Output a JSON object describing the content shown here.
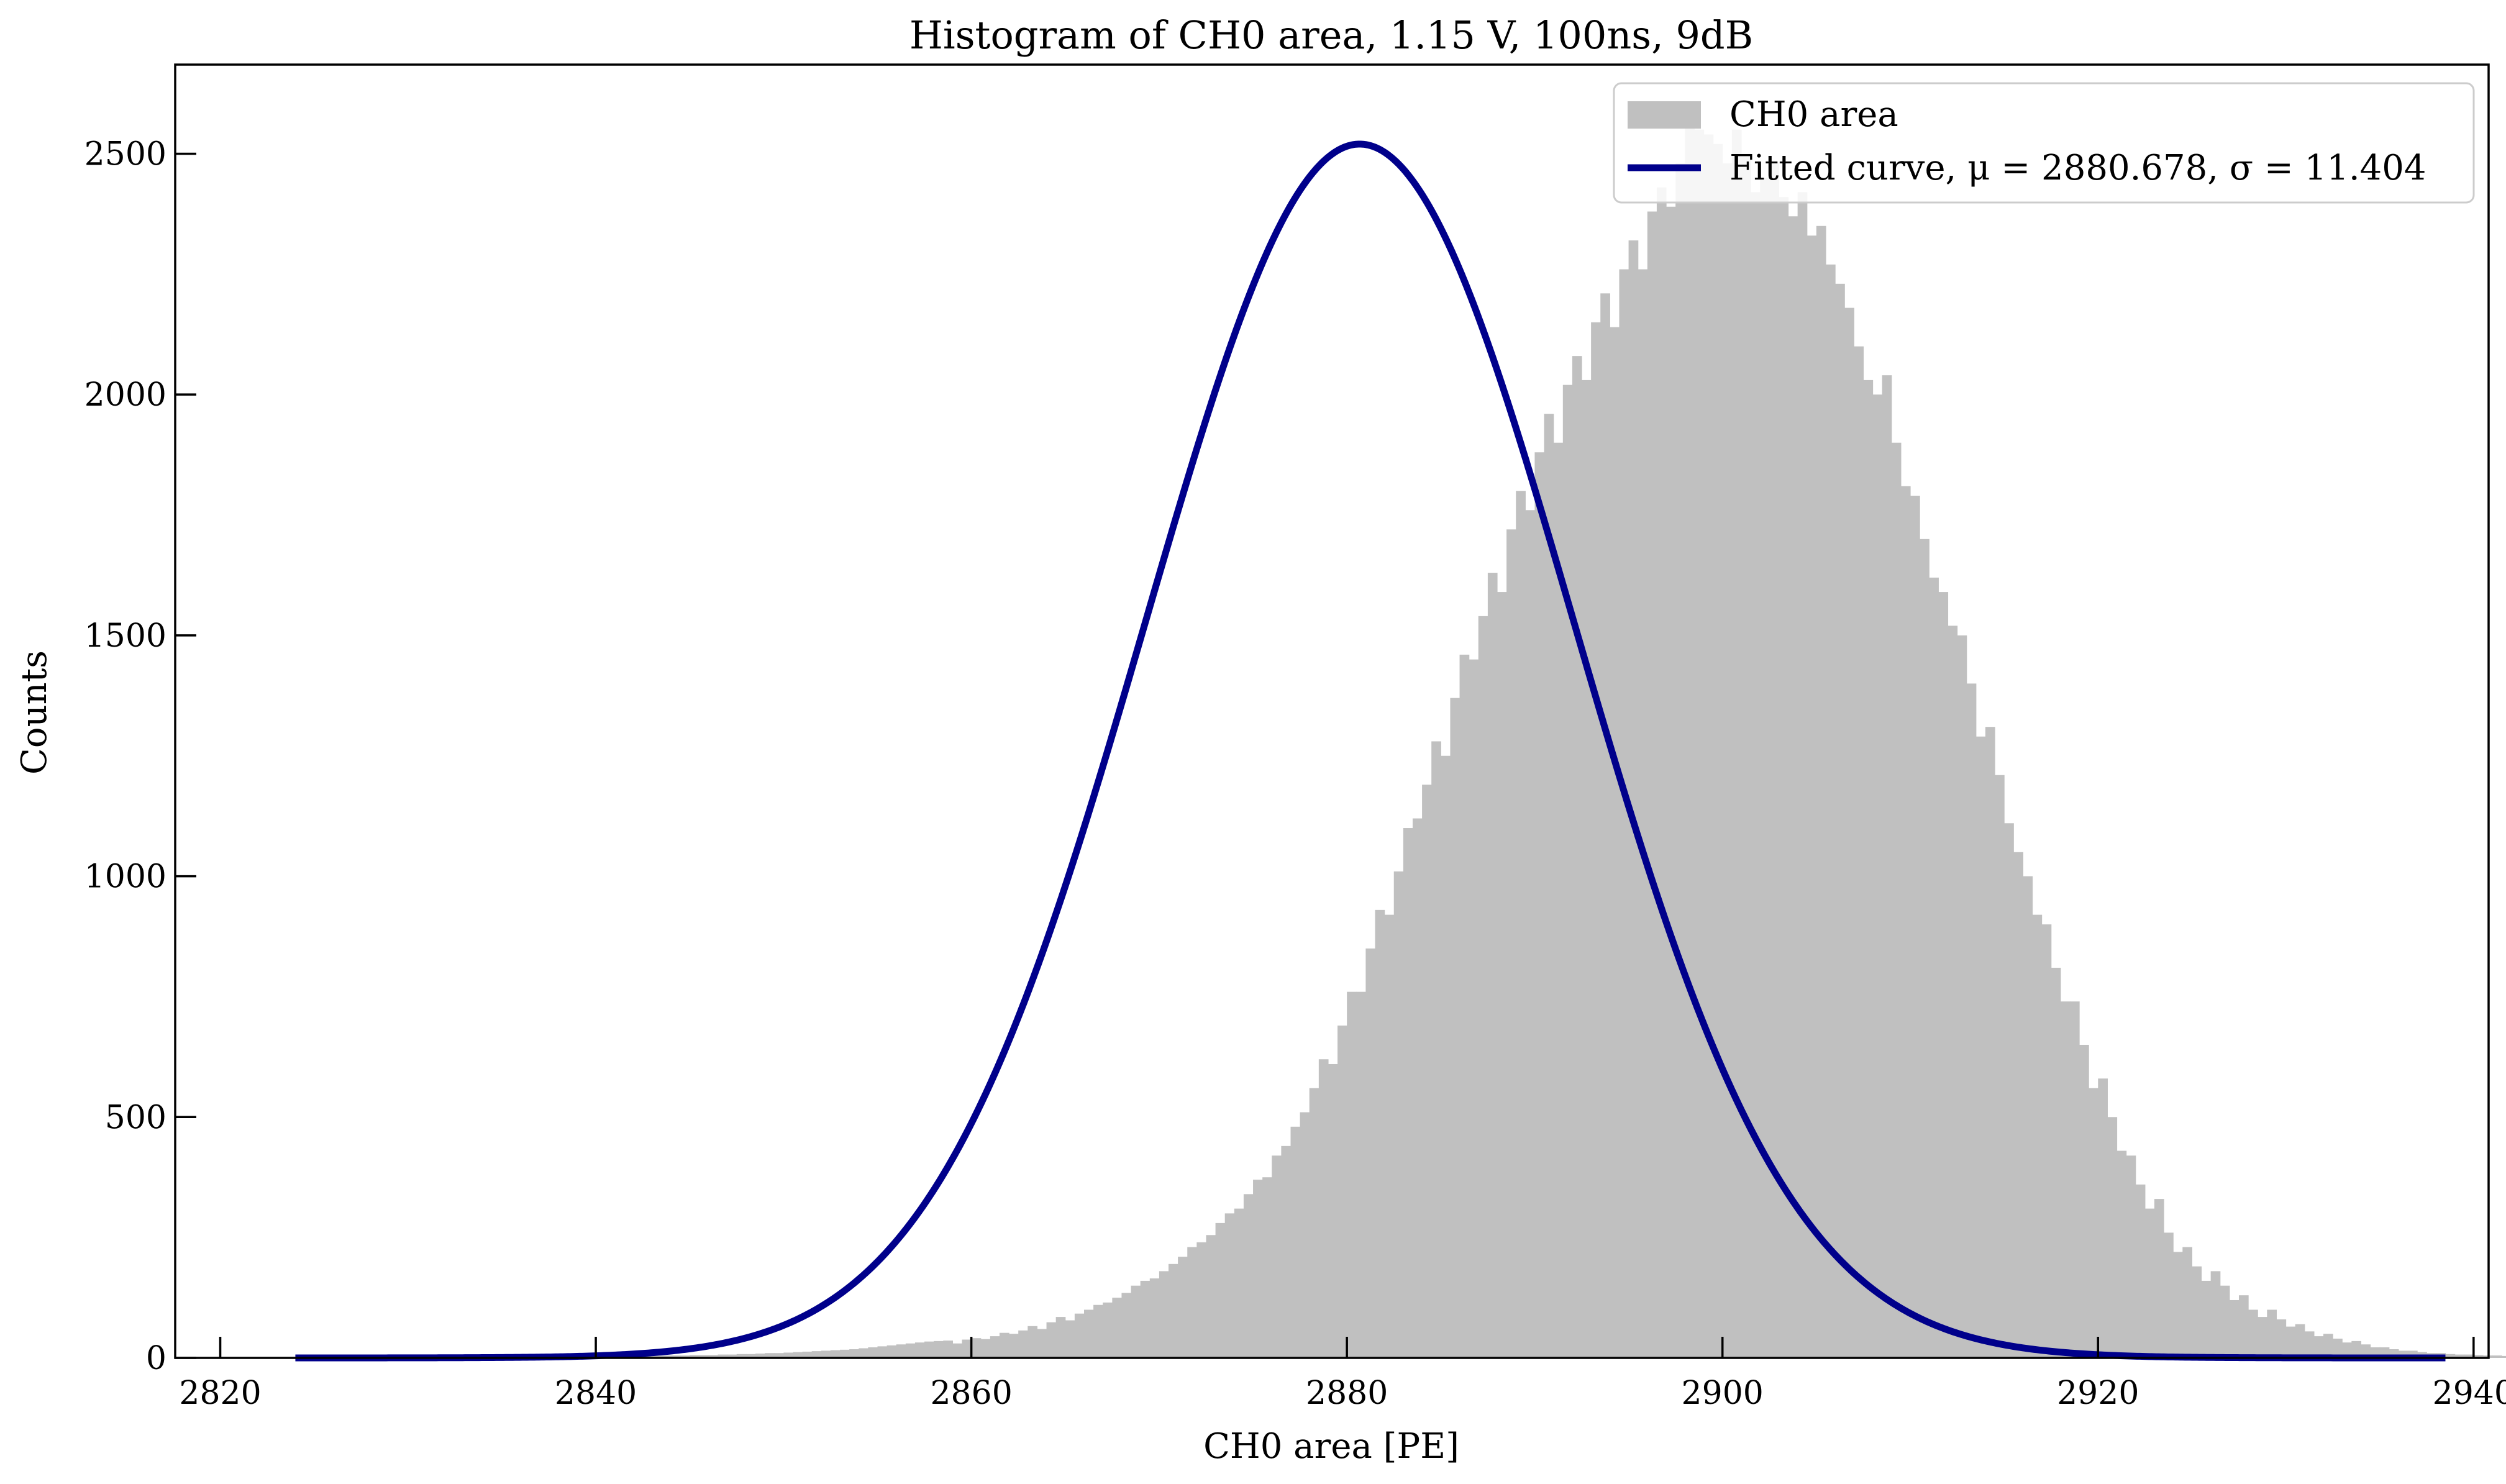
{
  "chart_data": {
    "type": "bar",
    "title": "Histogram of CH0 area, 1.15 V, 100ns, 9dB",
    "xlabel": "CH0 area [PE]",
    "ylabel": "Counts",
    "xlim": [
      2817.6,
      2940.8
    ],
    "ylim": [
      0,
      2685
    ],
    "xticks": [
      2820,
      2840,
      2860,
      2880,
      2900,
      2920,
      2940
    ],
    "yticks": [
      0,
      500,
      1000,
      1500,
      2000,
      2500
    ],
    "grid": false,
    "legend_position": "top-right",
    "bin_width": 0.5,
    "bins_start": 2824,
    "histogram_counts": [
      1,
      1,
      1,
      1,
      1,
      1,
      1,
      1,
      1,
      1,
      1,
      1,
      1,
      1,
      1,
      1,
      1,
      2,
      2,
      2,
      2,
      2,
      2,
      2,
      2,
      3,
      3,
      3,
      3,
      3,
      3,
      3,
      3,
      4,
      4,
      4,
      4,
      4,
      5,
      5,
      5,
      5,
      6,
      6,
      6,
      7,
      7,
      8,
      8,
      9,
      10,
      10,
      11,
      12,
      13,
      14,
      15,
      16,
      17,
      18,
      20,
      22,
      24,
      26,
      28,
      30,
      32,
      34,
      35,
      36,
      30,
      38,
      41,
      39,
      45,
      52,
      50,
      57,
      66,
      60,
      74,
      85,
      78,
      92,
      100,
      110,
      115,
      125,
      135,
      150,
      160,
      165,
      180,
      195,
      210,
      230,
      240,
      255,
      280,
      300,
      310,
      340,
      370,
      375,
      420,
      440,
      480,
      510,
      560,
      620,
      610,
      690,
      760,
      760,
      850,
      930,
      920,
      1010,
      1100,
      1120,
      1190,
      1280,
      1250,
      1370,
      1460,
      1450,
      1540,
      1630,
      1590,
      1720,
      1800,
      1760,
      1880,
      1960,
      1900,
      2020,
      2080,
      2030,
      2150,
      2210,
      2140,
      2260,
      2320,
      2260,
      2380,
      2430,
      2390,
      2480,
      2560,
      2550,
      2540,
      2520,
      2480,
      2550,
      2500,
      2420,
      2450,
      2480,
      2410,
      2370,
      2420,
      2330,
      2350,
      2270,
      2230,
      2180,
      2100,
      2030,
      2000,
      2040,
      1900,
      1810,
      1790,
      1700,
      1620,
      1590,
      1520,
      1500,
      1400,
      1290,
      1310,
      1210,
      1110,
      1050,
      1000,
      920,
      900,
      810,
      740,
      740,
      650,
      560,
      580,
      500,
      430,
      420,
      360,
      310,
      330,
      260,
      220,
      230,
      190,
      160,
      180,
      150,
      120,
      130,
      100,
      85,
      100,
      80,
      65,
      70,
      55,
      45,
      50,
      40,
      32,
      35,
      28,
      22,
      22,
      18,
      15,
      15,
      12,
      10,
      10,
      8,
      7,
      7,
      6,
      5,
      5,
      4,
      4,
      3,
      3,
      3,
      2,
      2,
      2,
      2,
      2,
      1,
      1,
      1,
      1,
      1,
      1,
      1,
      1,
      1,
      1,
      1,
      1,
      1,
      1,
      1,
      1,
      1,
      1,
      1,
      1,
      1,
      1,
      1,
      1,
      1,
      1,
      1,
      1,
      1,
      1,
      1,
      1,
      1,
      1,
      1,
      1,
      1,
      1,
      1,
      1,
      1,
      1,
      1,
      1,
      1,
      1,
      1,
      1,
      1,
      1,
      1,
      1,
      1,
      1,
      1,
      1,
      1,
      1,
      1,
      1,
      1,
      1,
      1,
      1,
      1,
      1,
      1,
      1,
      1,
      1,
      1,
      1
    ],
    "fit": {
      "mu": 2880.678,
      "sigma": 11.404,
      "amplitude": 2520,
      "x_range": [
        2824,
        2938.5
      ]
    },
    "series": [
      {
        "name": "CH0 area",
        "color": "#c0c0c0"
      },
      {
        "name": "Fitted curve, μ = 2880.678, σ = 11.404",
        "color": "#00008b"
      }
    ]
  }
}
